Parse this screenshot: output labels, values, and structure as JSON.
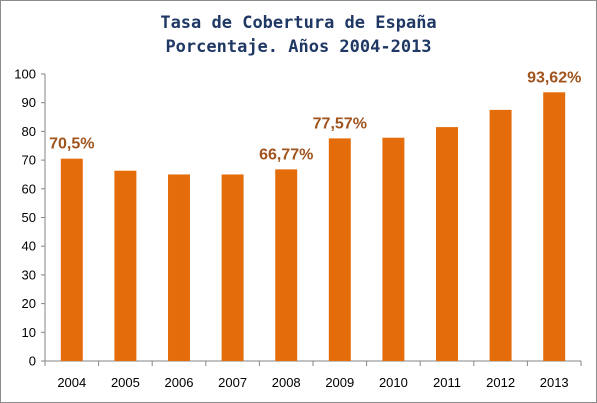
{
  "colors": {
    "title": "#1f3864",
    "bar": "#e46c0a",
    "data_label": "#a0541e",
    "axis": "#868686"
  },
  "chart_data": {
    "type": "bar",
    "title_lines": [
      "Tasa de Cobertura de España",
      "Porcentaje. Años 2004-2013"
    ],
    "categories": [
      "2004",
      "2005",
      "2006",
      "2007",
      "2008",
      "2009",
      "2010",
      "2011",
      "2012",
      "2013"
    ],
    "values": [
      70.5,
      66.3,
      65.0,
      65.0,
      66.77,
      77.57,
      77.8,
      81.5,
      87.5,
      93.62
    ],
    "data_labels": [
      "70,5%",
      "",
      "",
      "",
      "66,77%",
      "77,57%",
      "",
      "",
      "",
      "93,62%"
    ],
    "yticks": [
      "0",
      "10",
      "20",
      "30",
      "40",
      "50",
      "60",
      "70",
      "80",
      "90",
      "100"
    ],
    "ylim": [
      0,
      100
    ],
    "xlabel": "",
    "ylabel": "",
    "grid": false,
    "legend": "none"
  }
}
